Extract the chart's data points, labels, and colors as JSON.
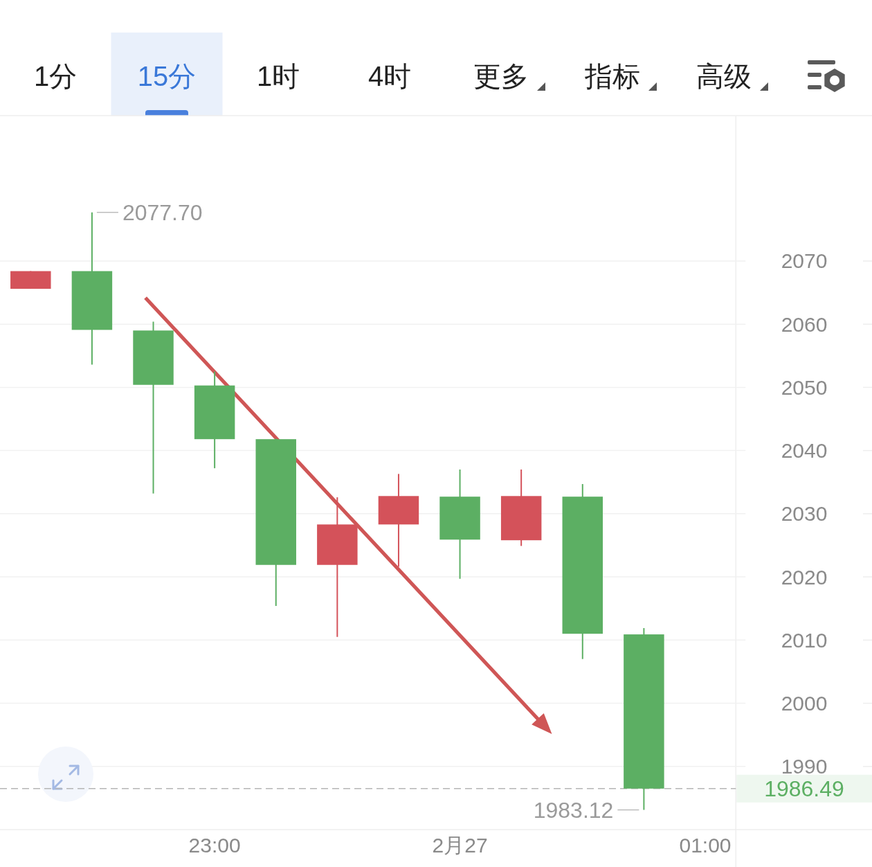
{
  "chart_data": [
    {
      "type": "other",
      "annotations": [
        "1分",
        "15分",
        "1时",
        "4时",
        "更多",
        "指标",
        "高级"
      ]
    },
    {
      "type": "candlestick",
      "categories": [
        null,
        null,
        null,
        "23:00",
        null,
        null,
        null,
        "2月27",
        null,
        null,
        null,
        "01:00"
      ],
      "ohlc": [
        [
          2065.6,
          2068.4,
          2065.6,
          2068.4
        ],
        [
          2068.4,
          2077.7,
          2053.6,
          2059.1
        ],
        [
          2059.0,
          2060.4,
          2033.2,
          2050.4
        ],
        [
          2050.3,
          2052.5,
          2037.2,
          2041.8
        ],
        [
          2041.8,
          2041.9,
          2015.4,
          2021.9
        ],
        [
          2021.9,
          2032.6,
          2010.5,
          2028.3
        ],
        [
          2028.3,
          2036.3,
          2021.6,
          2032.8
        ],
        [
          2032.7,
          2037.0,
          2019.7,
          2025.9
        ],
        [
          2025.8,
          2037.0,
          2024.9,
          2032.8
        ],
        [
          2032.7,
          2034.7,
          2007.0,
          2011.0
        ],
        [
          2010.9,
          2011.9,
          1983.12,
          1986.49
        ],
        null
      ],
      "colors": [
        "#d4525a",
        "#5caf63",
        "#5caf63",
        "#5caf63",
        "#5caf63",
        "#d4525a",
        "#d4525a",
        "#5caf63",
        "#d4525a",
        "#5caf63",
        "#5caf63",
        null
      ],
      "ylim": [
        1980,
        2092.9
      ],
      "yticks": [
        1990,
        2000,
        2010,
        2020,
        2030,
        2040,
        2050,
        2060,
        2070
      ],
      "grid": "y",
      "ref_lines": [
        {
          "axis": "y",
          "value": 1986.49,
          "label": "1986.49",
          "color": "#b5b5b5",
          "line_style": "dashed"
        }
      ],
      "annotations": [
        "2077.70",
        "1983.12"
      ]
    }
  ]
}
